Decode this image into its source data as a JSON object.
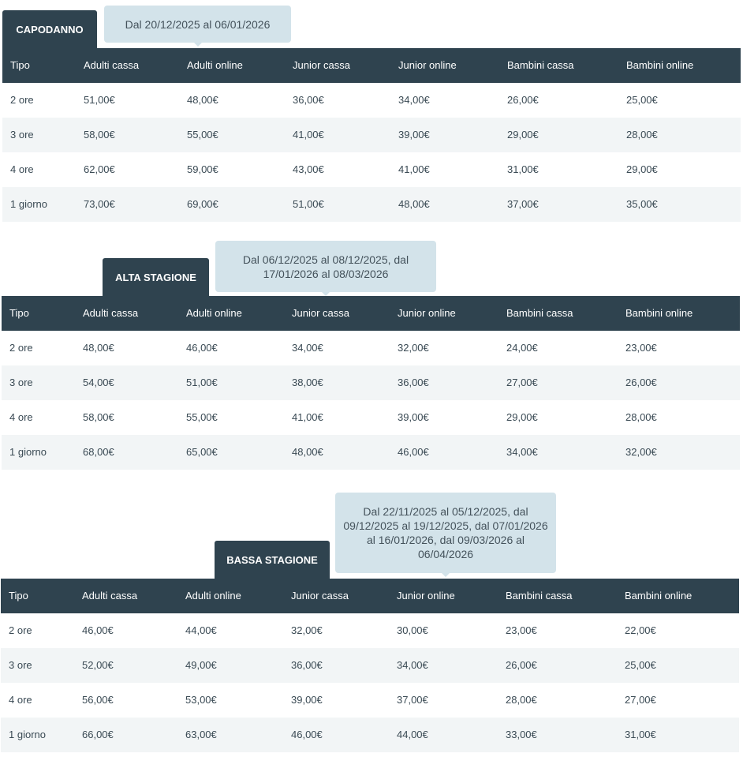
{
  "columns": [
    "Tipo",
    "Adulti cassa",
    "Adulti online",
    "Junior cassa",
    "Junior online",
    "Bambini cassa",
    "Bambini online"
  ],
  "sections": [
    {
      "title": "CAPODANNO",
      "period": "Dal 20/12/2025 al 06/01/2026",
      "rows": [
        [
          "2 ore",
          "51,00€",
          "48,00€",
          "36,00€",
          "34,00€",
          "26,00€",
          "25,00€"
        ],
        [
          "3 ore",
          "58,00€",
          "55,00€",
          "41,00€",
          "39,00€",
          "29,00€",
          "28,00€"
        ],
        [
          "4 ore",
          "62,00€",
          "59,00€",
          "43,00€",
          "41,00€",
          "31,00€",
          "29,00€"
        ],
        [
          "1 giorno",
          "73,00€",
          "69,00€",
          "51,00€",
          "48,00€",
          "37,00€",
          "35,00€"
        ]
      ]
    },
    {
      "title": "ALTA STAGIONE",
      "period": "Dal 06/12/2025 al 08/12/2025, dal 17/01/2026 al 08/03/2026",
      "rows": [
        [
          "2 ore",
          "48,00€",
          "46,00€",
          "34,00€",
          "32,00€",
          "24,00€",
          "23,00€"
        ],
        [
          "3 ore",
          "54,00€",
          "51,00€",
          "38,00€",
          "36,00€",
          "27,00€",
          "26,00€"
        ],
        [
          "4 ore",
          "58,00€",
          "55,00€",
          "41,00€",
          "39,00€",
          "29,00€",
          "28,00€"
        ],
        [
          "1 giorno",
          "68,00€",
          "65,00€",
          "48,00€",
          "46,00€",
          "34,00€",
          "32,00€"
        ]
      ]
    },
    {
      "title": "BASSA STAGIONE",
      "period": "Dal 22/11/2025 al 05/12/2025, dal 09/12/2025 al 19/12/2025, dal 07/01/2026 al 16/01/2026, dal 09/03/2026 al 06/04/2026",
      "rows": [
        [
          "2 ore",
          "46,00€",
          "44,00€",
          "32,00€",
          "30,00€",
          "23,00€",
          "22,00€"
        ],
        [
          "3 ore",
          "52,00€",
          "49,00€",
          "36,00€",
          "34,00€",
          "26,00€",
          "25,00€"
        ],
        [
          "4 ore",
          "56,00€",
          "53,00€",
          "39,00€",
          "37,00€",
          "28,00€",
          "27,00€"
        ],
        [
          "1 giorno",
          "66,00€",
          "63,00€",
          "46,00€",
          "44,00€",
          "33,00€",
          "31,00€"
        ]
      ]
    }
  ]
}
